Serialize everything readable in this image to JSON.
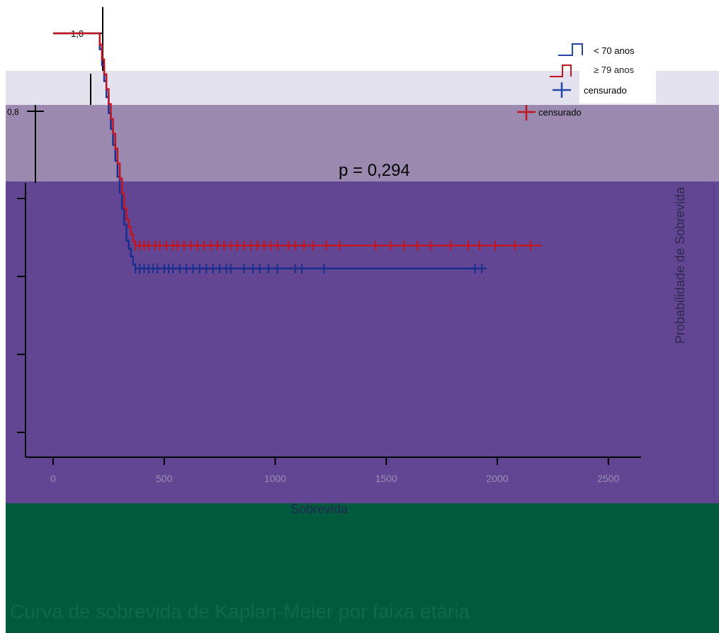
{
  "colors": {
    "band_light": "#e3e2ee",
    "band_mauve": "#9b89b0",
    "band_purple": "#634693",
    "band_green": "#005a3b",
    "series_lt70": "#1a2e8f",
    "series_ge79": "#c01622",
    "axis": "#000000",
    "axis_text_on_purple": "#9a8fb5",
    "watermark_text": "#0d6a4a"
  },
  "annotation": {
    "p_value": "p = 0,294"
  },
  "legend": {
    "items": [
      {
        "label": "< 70 anos",
        "color_key": "series_lt70",
        "symbol": "step"
      },
      {
        "label": "≥ 79 anos",
        "color_key": "series_ge79",
        "symbol": "step"
      },
      {
        "label": "censurado",
        "color_key": "series_lt70",
        "symbol": "plus"
      },
      {
        "label": "censurado",
        "color_key": "series_ge79",
        "symbol": "plus"
      }
    ]
  },
  "bottom_caption": "Curva de sobrevida de Kaplan-Meier por faixa etária",
  "chart_data": {
    "type": "line",
    "subtype": "kaplan-meier",
    "title": "",
    "xlabel": "Sobrevida",
    "ylabel": "Probabilidade de Sobrevida",
    "xlim": [
      -150,
      2600
    ],
    "ylim": [
      0,
      1.0
    ],
    "x_ticks": [
      0,
      500,
      1000,
      1500,
      2000,
      2500
    ],
    "x_tick_labels": [
      "0",
      "500",
      "1000",
      "1500",
      "2000",
      "2500"
    ],
    "y_tick_labels_visible": [
      "1,0",
      "0,8"
    ],
    "grid": false,
    "legend_position": "top-right",
    "series": [
      {
        "name": "< 70 anos",
        "color_key": "series_lt70",
        "x": [
          0,
          200,
          210,
          220,
          230,
          240,
          250,
          260,
          270,
          280,
          290,
          300,
          310,
          320,
          330,
          340,
          350,
          360,
          370,
          1950
        ],
        "y": [
          1.0,
          1.0,
          0.96,
          0.92,
          0.88,
          0.84,
          0.8,
          0.76,
          0.72,
          0.68,
          0.64,
          0.6,
          0.56,
          0.52,
          0.48,
          0.46,
          0.44,
          0.42,
          0.41,
          0.41
        ],
        "censored_x": [
          370,
          390,
          410,
          430,
          450,
          470,
          500,
          520,
          540,
          570,
          600,
          630,
          660,
          690,
          720,
          750,
          780,
          800,
          860,
          900,
          930,
          970,
          1010,
          1090,
          1120,
          1220,
          1900,
          1930
        ]
      },
      {
        "name": "≥ 79 anos",
        "color_key": "series_ge79",
        "x": [
          0,
          200,
          210,
          220,
          230,
          240,
          250,
          260,
          270,
          280,
          290,
          300,
          310,
          320,
          330,
          340,
          350,
          360,
          370,
          2200
        ],
        "y": [
          1.0,
          1.0,
          0.97,
          0.93,
          0.89,
          0.85,
          0.81,
          0.77,
          0.73,
          0.69,
          0.65,
          0.61,
          0.57,
          0.53,
          0.5,
          0.48,
          0.46,
          0.44,
          0.43,
          0.43
        ],
        "censored_x": [
          370,
          390,
          410,
          430,
          460,
          480,
          510,
          540,
          560,
          590,
          620,
          650,
          680,
          710,
          740,
          770,
          800,
          830,
          860,
          890,
          920,
          950,
          980,
          1010,
          1060,
          1090,
          1130,
          1170,
          1230,
          1290,
          1450,
          1520,
          1580,
          1640,
          1700,
          1790,
          1870,
          1920,
          1990,
          2080,
          2150
        ]
      }
    ]
  }
}
